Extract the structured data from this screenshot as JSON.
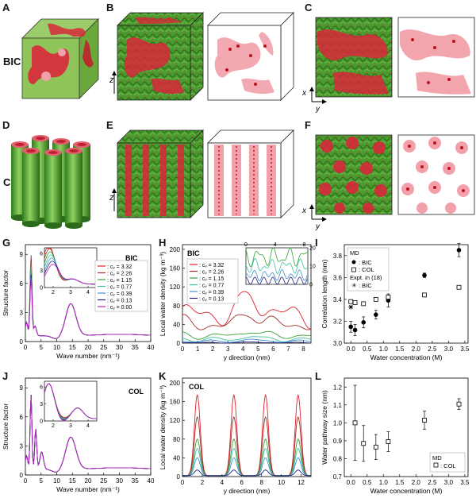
{
  "panel_letters": [
    "A",
    "B",
    "C",
    "D",
    "E",
    "F",
    "G",
    "H",
    "I",
    "J",
    "K",
    "L"
  ],
  "row_labels": {
    "bic": "BIC",
    "col": "COL"
  },
  "axis_letters": {
    "z": "z",
    "x": "x",
    "y": "y"
  },
  "colors": {
    "green": "#3f9a2a",
    "red": "#d8283a",
    "pink": "#f2a0aa"
  },
  "chart_data": [
    {
      "id": "G",
      "type": "line",
      "title": "BIC",
      "xlabel": "Wave number (nm⁻¹)",
      "ylabel": "Structure factor",
      "xlim": [
        0,
        40
      ],
      "ylim": [
        0,
        10
      ],
      "xticks": [
        0,
        5,
        10,
        15,
        20,
        25,
        30,
        35,
        40
      ],
      "yticks": [
        0,
        3,
        6,
        9
      ],
      "legend": [
        "c_w = 3.32",
        "c_w = 2.26",
        "c_w = 1.15",
        "c_w = 0.77",
        "c_w = 0.39",
        "c_w = 0.13",
        "c_w = 0.00"
      ],
      "legend_display": [
        ": cᵥ = 3.32",
        ": cᵥ = 2.26",
        ": cᵥ = 1.15",
        ": cᵥ = 0.77",
        ": cᵥ = 0.39",
        ": cᵥ = 0.13",
        ": cᵥ = 0.00"
      ],
      "series_colors": [
        "#e0202c",
        "#a0302a",
        "#38a038",
        "#40c0a0",
        "#4090d0",
        "#202080",
        "#c020c0"
      ],
      "inset": {
        "xlim": [
          1.5,
          4.5
        ],
        "ylim": [
          0,
          7
        ],
        "xticks": [
          2,
          3,
          4
        ],
        "yticks": [
          0,
          3,
          6
        ]
      }
    },
    {
      "id": "H",
      "type": "line",
      "title": "BIC",
      "xlabel": "y direction (nm)",
      "ylabel": "Local water density (kg m⁻³)",
      "xlim": [
        0,
        8.5
      ],
      "ylim": [
        0,
        210
      ],
      "xticks": [
        0,
        1,
        2,
        3,
        4,
        5,
        6,
        7,
        8
      ],
      "yticks": [
        0,
        40,
        80,
        120,
        160,
        200
      ],
      "legend_display": [
        ": cᵥ = 3.32",
        ": cᵥ = 2.26",
        ": cᵥ = 1.15",
        ": cᵥ = 0.77",
        ": cᵥ = 0.39",
        ": cᵥ = 0.13"
      ],
      "series_colors": [
        "#e0202c",
        "#a0302a",
        "#38a038",
        "#40c0a0",
        "#4090d0",
        "#202080"
      ],
      "inset": {
        "xlim": [
          0,
          8.5
        ],
        "ylim": [
          0,
          20
        ],
        "xticks": [
          0,
          4,
          8
        ],
        "yticks": [
          0,
          10,
          20
        ]
      }
    },
    {
      "id": "I",
      "type": "scatter",
      "xlabel": "Water concentration (M)",
      "ylabel": "Correlation length (nm)",
      "xlim": [
        -0.2,
        3.6
      ],
      "ylim": [
        3.0,
        3.9
      ],
      "xticks": [
        0.0,
        0.5,
        1.0,
        1.5,
        2.0,
        2.5,
        3.0,
        3.5
      ],
      "yticks": [
        3.0,
        3.2,
        3.4,
        3.6,
        3.8
      ],
      "legend_title": "MD",
      "legend_bic": ": BIC",
      "legend_col": ": COL",
      "legend_expt": "Expt. in (18)",
      "legend_expt_bic": ": BIC",
      "series": [
        {
          "name": "BIC",
          "x": [
            0.0,
            0.13,
            0.39,
            0.77,
            1.15,
            2.26,
            3.32
          ],
          "y": [
            3.15,
            3.12,
            3.19,
            3.26,
            3.39,
            3.62,
            3.85
          ],
          "err": [
            0.05,
            0.05,
            0.05,
            0.04,
            0.06,
            0.02,
            0.06
          ]
        },
        {
          "name": "COL",
          "x": [
            0.0,
            0.13,
            0.39,
            0.77,
            1.15,
            2.26,
            3.32
          ],
          "y": [
            3.38,
            3.37,
            3.36,
            3.4,
            3.42,
            3.44,
            3.51
          ],
          "err": [
            0,
            0,
            0,
            0,
            0,
            0,
            0
          ]
        },
        {
          "name": "Expt BIC",
          "x": [
            0.0
          ],
          "y": [
            3.33
          ]
        }
      ]
    },
    {
      "id": "J",
      "type": "line",
      "title": "COL",
      "xlabel": "Wave number (nm⁻¹)",
      "ylabel": "Structure factor",
      "xlim": [
        0,
        40
      ],
      "ylim": [
        0,
        10
      ],
      "xticks": [
        0,
        5,
        10,
        15,
        20,
        25,
        30,
        35,
        40
      ],
      "yticks": [
        0,
        3,
        6,
        9
      ],
      "inset": {
        "xlim": [
          1.5,
          4.5
        ],
        "ylim": [
          0,
          7
        ],
        "xticks": [
          2,
          3,
          4
        ],
        "yticks": [
          0,
          3,
          6
        ]
      }
    },
    {
      "id": "K",
      "type": "line",
      "title": "COL",
      "xlabel": "y direction (nm)",
      "ylabel": "Local water density (kg m⁻³)",
      "xlim": [
        0,
        13
      ],
      "ylim": [
        0,
        210
      ],
      "xticks": [
        0,
        2,
        4,
        6,
        8,
        10,
        12
      ],
      "yticks": [
        0,
        40,
        80,
        120,
        160,
        200
      ],
      "peaks": [
        1.5,
        5.2,
        8.4,
        11.7
      ],
      "peak_heights": [
        172,
        125,
        78,
        58,
        38,
        12
      ],
      "series_colors": [
        "#e0202c",
        "#a0302a",
        "#38a038",
        "#40c0a0",
        "#4090d0",
        "#202080"
      ]
    },
    {
      "id": "L",
      "type": "scatter",
      "xlabel": "Water concentration (M)",
      "ylabel": "Water pathway size (nm)",
      "xlim": [
        -0.2,
        3.6
      ],
      "ylim": [
        0.7,
        1.25
      ],
      "xticks": [
        0.0,
        0.5,
        1.0,
        1.5,
        2.0,
        2.5,
        3.0,
        3.5
      ],
      "yticks": [
        0.7,
        0.8,
        0.9,
        1.0,
        1.1,
        1.2
      ],
      "legend_title": "MD",
      "legend_col": ": COL",
      "series": [
        {
          "name": "COL",
          "x": [
            0.13,
            0.39,
            0.77,
            1.15,
            2.26,
            3.32
          ],
          "y": [
            1.0,
            0.885,
            0.865,
            0.895,
            1.015,
            1.105
          ],
          "err": [
            0.21,
            0.1,
            0.07,
            0.055,
            0.05,
            0.03
          ]
        }
      ]
    }
  ]
}
